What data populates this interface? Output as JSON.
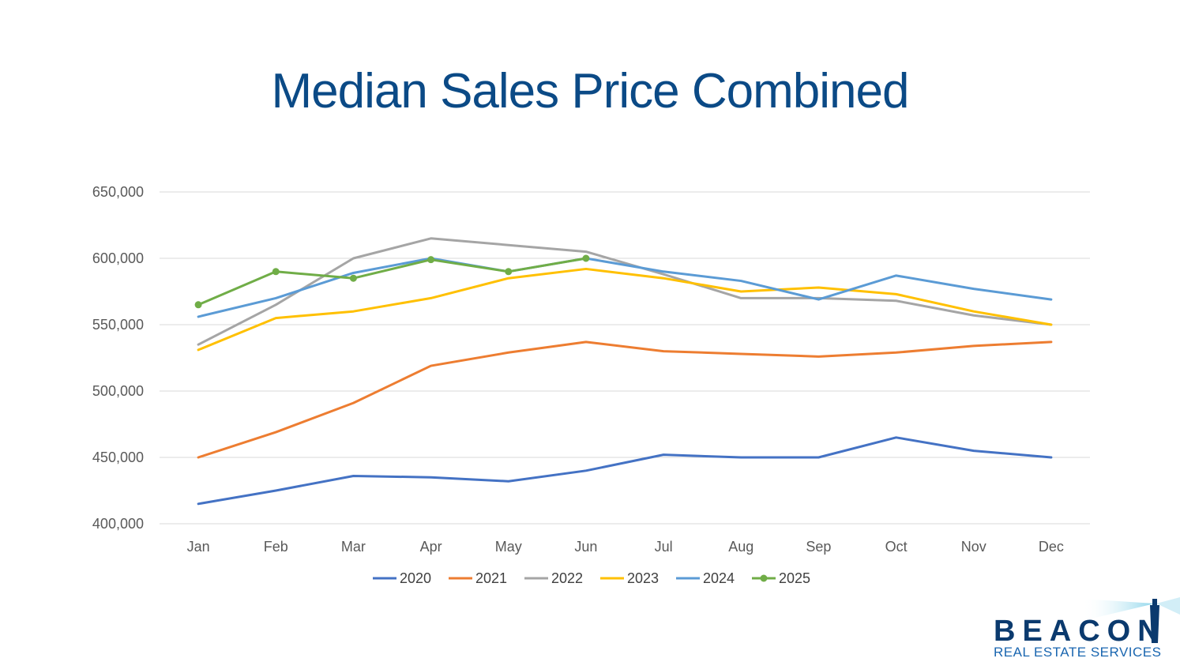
{
  "title": "Median Sales Price Combined",
  "chart_data": {
    "type": "line",
    "title": "Median Sales Price Combined",
    "categories": [
      "Jan",
      "Feb",
      "Mar",
      "Apr",
      "May",
      "Jun",
      "Jul",
      "Aug",
      "Sep",
      "Oct",
      "Nov",
      "Dec"
    ],
    "ylim": [
      400000,
      650000
    ],
    "yticks": [
      "400,000",
      "450,000",
      "500,000",
      "550,000",
      "600,000",
      "650,000"
    ],
    "grid": true,
    "legend": "bottom",
    "series": [
      {
        "name": "2020",
        "color": "#4472c4",
        "markers": false,
        "values": [
          415000,
          425000,
          436000,
          435000,
          432000,
          440000,
          452000,
          450000,
          450000,
          465000,
          455000,
          450000
        ]
      },
      {
        "name": "2021",
        "color": "#ed7d31",
        "markers": false,
        "values": [
          450000,
          469000,
          491000,
          519000,
          529000,
          537000,
          530000,
          528000,
          526000,
          529000,
          534000,
          537000
        ]
      },
      {
        "name": "2022",
        "color": "#a5a5a5",
        "markers": false,
        "values": [
          535000,
          565000,
          600000,
          615000,
          610000,
          605000,
          588000,
          570000,
          570000,
          568000,
          557000,
          550000
        ]
      },
      {
        "name": "2023",
        "color": "#ffc000",
        "markers": false,
        "values": [
          531000,
          555000,
          560000,
          570000,
          585000,
          592000,
          585000,
          575000,
          578000,
          573000,
          560000,
          550000
        ]
      },
      {
        "name": "2024",
        "color": "#5b9bd5",
        "markers": false,
        "values": [
          556000,
          570000,
          589000,
          600000,
          590000,
          600000,
          590000,
          583000,
          569000,
          587000,
          577000,
          569000
        ]
      },
      {
        "name": "2025",
        "color": "#70ad47",
        "markers": true,
        "values": [
          565000,
          590000,
          585000,
          599000,
          590000,
          600000,
          null,
          null,
          null,
          null,
          null,
          null
        ]
      }
    ]
  },
  "logo": {
    "word": "BEACON",
    "sub": "REAL ESTATE SERVICES",
    "color": "#0b3a6e"
  }
}
